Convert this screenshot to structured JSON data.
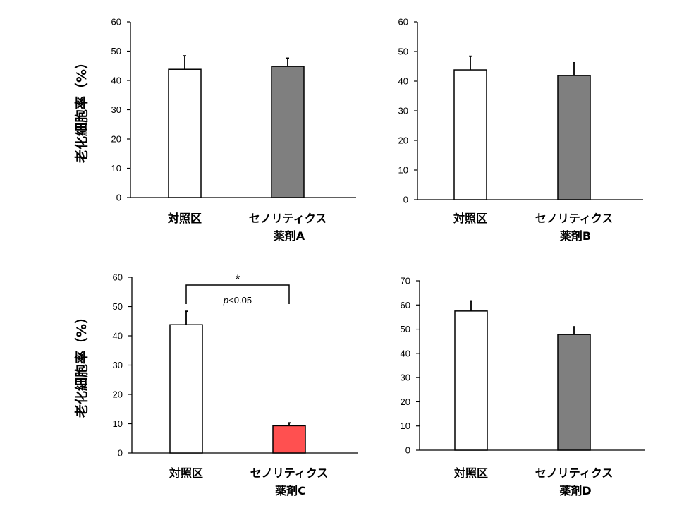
{
  "ylabel": "老化細胞率（%）",
  "chart_data": [
    {
      "type": "bar",
      "ylim": [
        0,
        60
      ],
      "yticks": [
        "0",
        "10",
        "20",
        "30",
        "40",
        "50",
        "60"
      ],
      "categories": [
        {
          "line1": "対照区",
          "line2": ""
        },
        {
          "line1": "セノリティクス",
          "line2": "薬剤A"
        }
      ],
      "values": [
        43.8,
        44.8
      ],
      "errors": [
        4.6,
        2.8
      ],
      "colors": [
        "#ffffff",
        "#7f7f7f"
      ],
      "show_ylabel": true
    },
    {
      "type": "bar",
      "ylim": [
        0,
        60
      ],
      "yticks": [
        "0",
        "10",
        "20",
        "30",
        "40",
        "50",
        "60"
      ],
      "categories": [
        {
          "line1": "対照区",
          "line2": ""
        },
        {
          "line1": "セノリティクス",
          "line2": "薬剤B"
        }
      ],
      "values": [
        43.8,
        41.9
      ],
      "errors": [
        4.6,
        4.3
      ],
      "colors": [
        "#ffffff",
        "#7f7f7f"
      ],
      "show_ylabel": false
    },
    {
      "type": "bar",
      "ylim": [
        0,
        60
      ],
      "yticks": [
        "0",
        "10",
        "20",
        "30",
        "40",
        "50",
        "60"
      ],
      "categories": [
        {
          "line1": "対照区",
          "line2": ""
        },
        {
          "line1": "セノリティクス",
          "line2": "薬剤C"
        }
      ],
      "values": [
        43.8,
        9.3
      ],
      "errors": [
        4.6,
        1.0
      ],
      "colors": [
        "#ffffff",
        "#ff5050"
      ],
      "show_ylabel": true,
      "significance": {
        "star": "*",
        "label_italic": "p",
        "label_rest": "<0.05"
      }
    },
    {
      "type": "bar",
      "ylim": [
        0,
        70
      ],
      "yticks": [
        "0",
        "10",
        "20",
        "30",
        "40",
        "50",
        "60",
        "70"
      ],
      "categories": [
        {
          "line1": "対照区",
          "line2": ""
        },
        {
          "line1": "セノリティクス",
          "line2": "薬剤D"
        }
      ],
      "values": [
        57.5,
        47.8
      ],
      "errors": [
        4.2,
        3.2
      ],
      "colors": [
        "#ffffff",
        "#7f7f7f"
      ],
      "show_ylabel": false
    }
  ]
}
